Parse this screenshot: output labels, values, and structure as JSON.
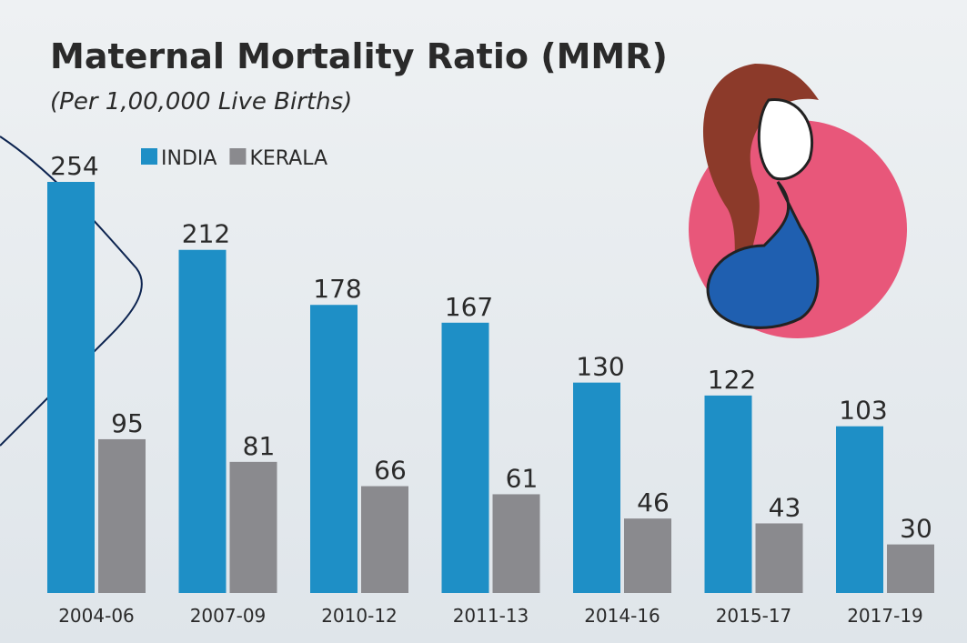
{
  "chart_data": {
    "type": "bar",
    "title": "Maternal Mortality Ratio (MMR)",
    "subtitle": "(Per 1,00,000 Live Births)",
    "categories": [
      "2004-06",
      "2007-09",
      "2010-12",
      "2011-13",
      "2014-16",
      "2015-17",
      "2017-19"
    ],
    "series": [
      {
        "name": "INDIA",
        "color": "#1e8fc6",
        "values": [
          254,
          212,
          178,
          167,
          130,
          122,
          103
        ]
      },
      {
        "name": "KERALA",
        "color": "#8a8a8e",
        "values": [
          95,
          81,
          66,
          61,
          46,
          43,
          30
        ]
      }
    ]
  }
}
